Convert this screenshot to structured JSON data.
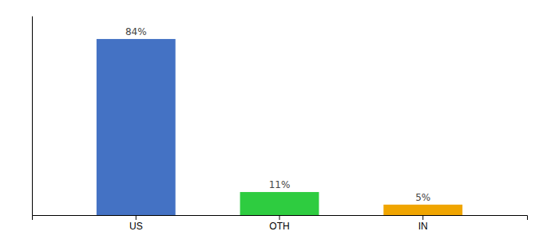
{
  "chart_data": {
    "type": "bar",
    "categories": [
      "US",
      "OTH",
      "IN"
    ],
    "values": [
      84,
      11,
      5
    ],
    "value_labels": [
      "84%",
      "11%",
      "5%"
    ],
    "colors": [
      "#4472c4",
      "#2ecc40",
      "#f0a500"
    ],
    "ylim": [
      0,
      95
    ],
    "data_labels": true,
    "tick_labels": "x",
    "grid": false
  }
}
